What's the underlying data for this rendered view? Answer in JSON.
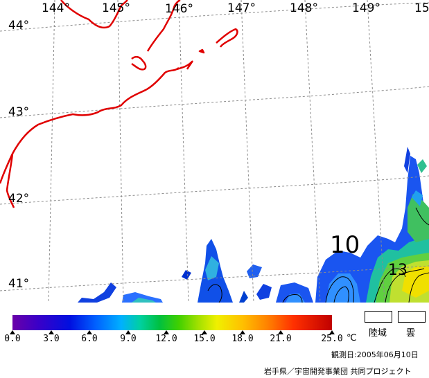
{
  "map": {
    "lon_labels": [
      "144°",
      "145°",
      "146°",
      "147°",
      "148°",
      "149°",
      "15"
    ],
    "lat_labels": [
      "44°",
      "43°",
      "42°",
      "41°"
    ],
    "contour_labels": [
      "10",
      "13"
    ],
    "colors": {
      "coastline": "#e00000",
      "graticule": "#8c8c8c",
      "land_masked": "#ffffff"
    }
  },
  "colorbar": {
    "tick_labels": [
      "0.0",
      "3.0",
      "6.0",
      "9.0",
      "12.0",
      "15.0",
      "18.0",
      "21.0",
      "25.0"
    ],
    "unit": "℃",
    "range": [
      0,
      25
    ]
  },
  "legend": {
    "land_label": "陸域",
    "cloud_label": "雲"
  },
  "footer": {
    "observation_date": "観測日:2005年06月10日",
    "credit": "岩手県／宇宙開発事業団 共同プロジェクト"
  }
}
